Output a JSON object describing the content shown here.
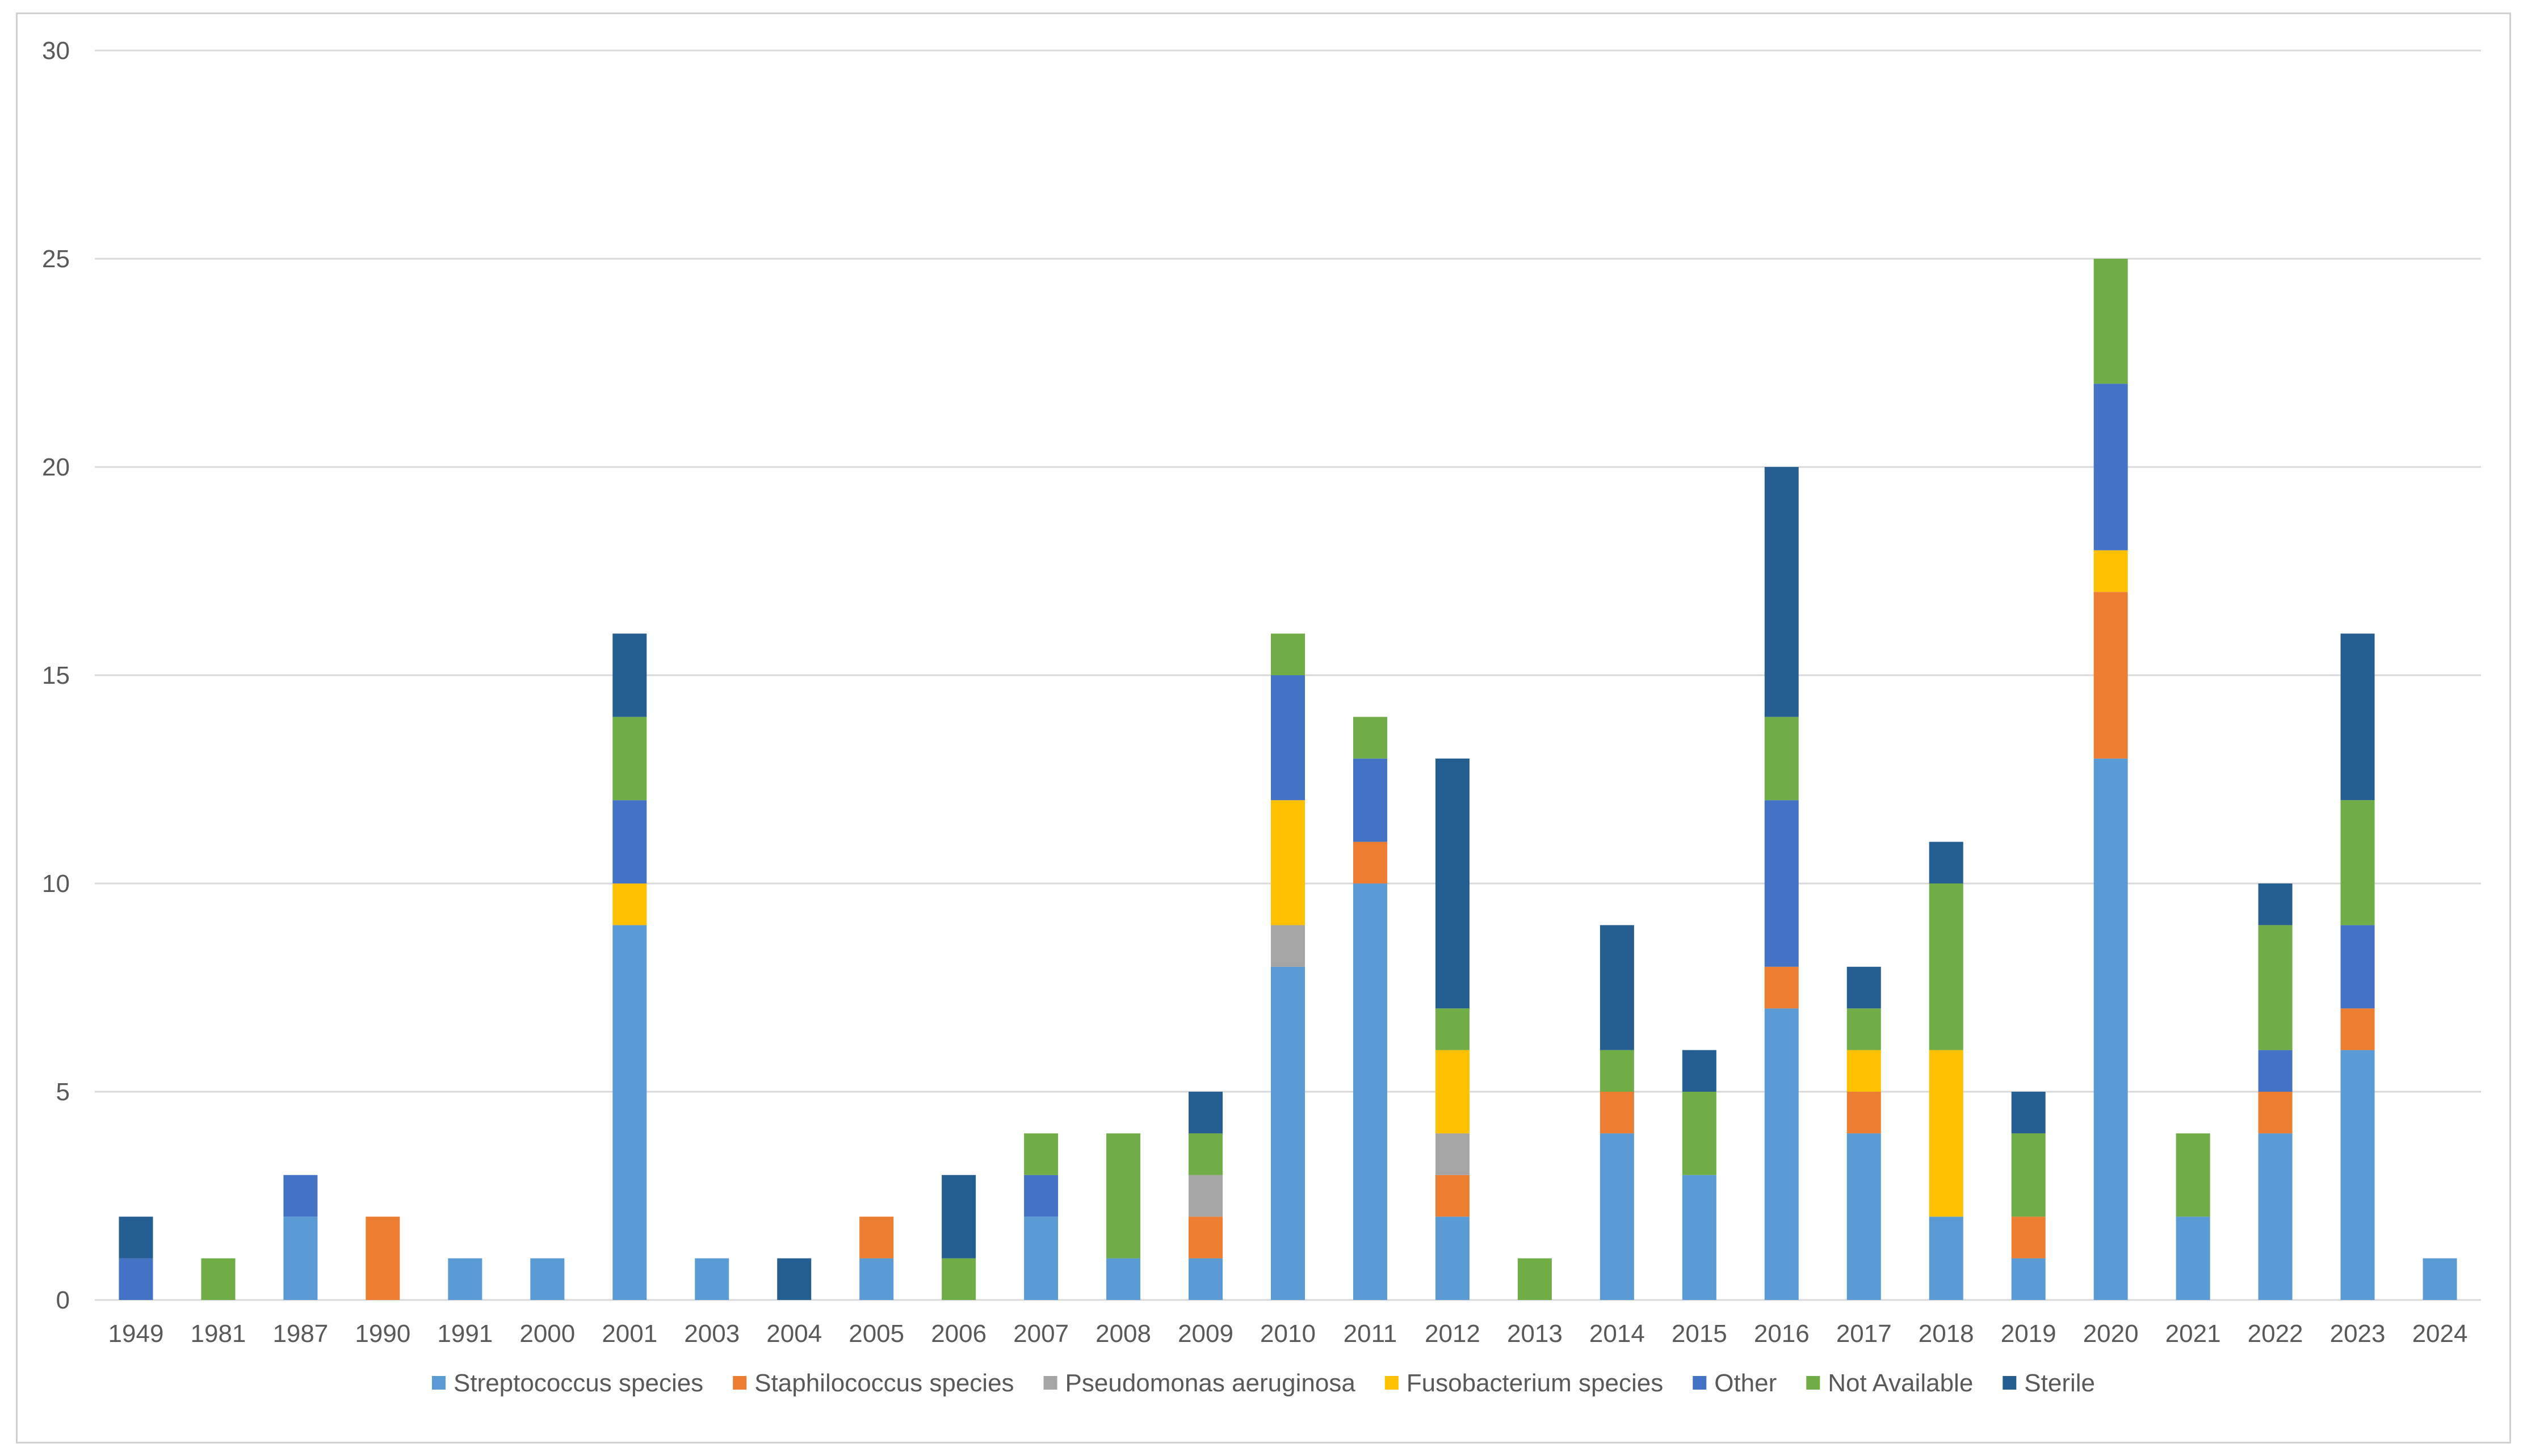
{
  "chart_data": {
    "type": "bar",
    "stacked": true,
    "title": "",
    "xlabel": "",
    "ylabel": "",
    "ylim": [
      0,
      30
    ],
    "yticks": [
      0,
      5,
      10,
      15,
      20,
      25,
      30
    ],
    "grid": true,
    "legend_position": "bottom",
    "categories": [
      "1949",
      "1981",
      "1987",
      "1990",
      "1991",
      "2000",
      "2001",
      "2003",
      "2004",
      "2005",
      "2006",
      "2007",
      "2008",
      "2009",
      "2010",
      "2011",
      "2012",
      "2013",
      "2014",
      "2015",
      "2016",
      "2017",
      "2018",
      "2019",
      "2020",
      "2021",
      "2022",
      "2023",
      "2024"
    ],
    "series": [
      {
        "name": "Streptococcus species",
        "color": "#5B9BD5",
        "values": [
          0,
          0,
          2,
          0,
          1,
          1,
          9,
          1,
          0,
          1,
          0,
          2,
          1,
          1,
          8,
          10,
          2,
          0,
          4,
          3,
          7,
          4,
          2,
          1,
          13,
          2,
          4,
          6,
          1
        ]
      },
      {
        "name": "Staphilococcus species",
        "color": "#ED7D31",
        "values": [
          0,
          0,
          0,
          2,
          0,
          0,
          0,
          0,
          0,
          1,
          0,
          0,
          0,
          1,
          0,
          1,
          1,
          0,
          1,
          0,
          1,
          1,
          0,
          1,
          4,
          0,
          1,
          1,
          0
        ]
      },
      {
        "name": "Pseudomonas aeruginosa",
        "color": "#A5A5A5",
        "values": [
          0,
          0,
          0,
          0,
          0,
          0,
          0,
          0,
          0,
          0,
          0,
          0,
          0,
          1,
          1,
          0,
          1,
          0,
          0,
          0,
          0,
          0,
          0,
          0,
          0,
          0,
          0,
          0,
          0
        ]
      },
      {
        "name": "Fusobacterium species",
        "color": "#FFC000",
        "values": [
          0,
          0,
          0,
          0,
          0,
          0,
          1,
          0,
          0,
          0,
          0,
          0,
          0,
          0,
          3,
          0,
          2,
          0,
          0,
          0,
          0,
          1,
          4,
          0,
          1,
          0,
          0,
          0,
          0
        ]
      },
      {
        "name": "Other",
        "color": "#4472C4",
        "values": [
          1,
          0,
          1,
          0,
          0,
          0,
          2,
          0,
          0,
          0,
          0,
          1,
          0,
          0,
          3,
          2,
          0,
          0,
          0,
          0,
          4,
          0,
          0,
          0,
          4,
          0,
          1,
          2,
          0
        ]
      },
      {
        "name": "Not Available",
        "color": "#70AD47",
        "values": [
          0,
          1,
          0,
          0,
          0,
          0,
          2,
          0,
          0,
          0,
          1,
          1,
          3,
          1,
          1,
          1,
          1,
          1,
          1,
          2,
          2,
          1,
          4,
          2,
          3,
          2,
          3,
          3,
          0
        ]
      },
      {
        "name": "Sterile",
        "color": "#255E91",
        "values": [
          1,
          0,
          0,
          0,
          0,
          0,
          2,
          0,
          1,
          0,
          2,
          0,
          0,
          1,
          0,
          0,
          6,
          0,
          3,
          1,
          6,
          1,
          1,
          1,
          0,
          0,
          1,
          4,
          0
        ]
      }
    ]
  },
  "colors": {
    "gridline": "#D9D9D9",
    "axis_text": "#595959",
    "frame": "#D0D0D0"
  }
}
